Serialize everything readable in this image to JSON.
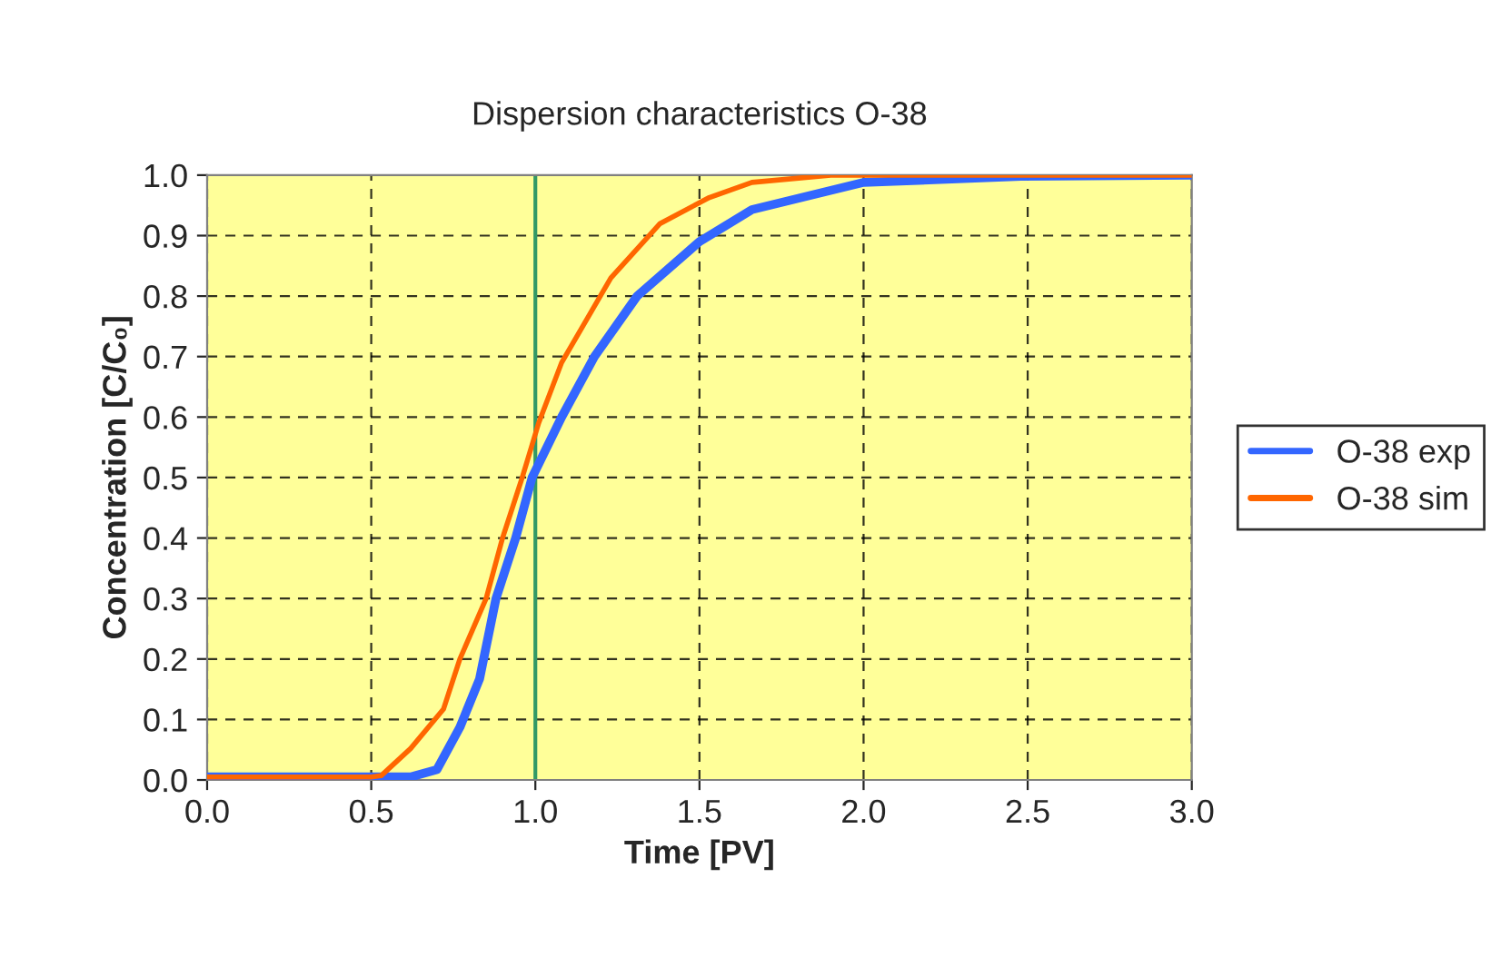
{
  "chart_data": {
    "type": "line",
    "title": "Dispersion characteristics O-38",
    "xlabel": "Time [PV]",
    "ylabel": "Concentration [C/C₀]",
    "xlim": [
      0,
      3
    ],
    "xticks": [
      {
        "value": 0,
        "label": "0.0"
      },
      {
        "value": 0.5,
        "label": "0.5"
      },
      {
        "value": 1,
        "label": "1.0"
      },
      {
        "value": 1.5,
        "label": "1.5"
      },
      {
        "value": 2,
        "label": "2.0"
      },
      {
        "value": 2.5,
        "label": "2.5"
      },
      {
        "value": 3,
        "label": "3.0"
      }
    ],
    "ylim": [
      0,
      1
    ],
    "yticks": [
      {
        "value": 0,
        "label": "0.0"
      },
      {
        "value": 0.1,
        "label": "0.1"
      },
      {
        "value": 0.2,
        "label": "0.2"
      },
      {
        "value": 0.3,
        "label": "0.3"
      },
      {
        "value": 0.4,
        "label": "0.4"
      },
      {
        "value": 0.5,
        "label": "0.5"
      },
      {
        "value": 0.6,
        "label": "0.6"
      },
      {
        "value": 0.7,
        "label": "0.7"
      },
      {
        "value": 0.8,
        "label": "0.8"
      },
      {
        "value": 0.9,
        "label": "0.9"
      },
      {
        "value": 1,
        "label": "1.0"
      }
    ],
    "grid": true,
    "legend": "right",
    "marker": "none",
    "line_style": "solid",
    "ref_lines": [
      {
        "axis": "x",
        "value": 1.0,
        "color": "#339966"
      }
    ],
    "series": [
      {
        "name": "O-38 exp",
        "color": "#3366ff",
        "x": [
          0,
          0.55,
          0.62,
          0.7,
          0.77,
          0.83,
          0.88,
          0.94,
          0.99,
          1.08,
          1.18,
          1.31,
          1.5,
          1.66,
          2.0,
          2.48,
          3.0
        ],
        "values": [
          0.005,
          0.005,
          0.005,
          0.017,
          0.087,
          0.167,
          0.3,
          0.4,
          0.5,
          0.6,
          0.7,
          0.8,
          0.89,
          0.943,
          0.988,
          0.998,
          1.0
        ]
      },
      {
        "name": "O-38 sim",
        "color": "#ff6600",
        "x": [
          0,
          0.5,
          0.53,
          0.62,
          0.72,
          0.77,
          0.85,
          0.9,
          0.96,
          1.01,
          1.08,
          1.23,
          1.38,
          1.53,
          1.66,
          1.9,
          3.0
        ],
        "values": [
          0.005,
          0.005,
          0.007,
          0.052,
          0.117,
          0.2,
          0.3,
          0.4,
          0.5,
          0.59,
          0.69,
          0.83,
          0.92,
          0.963,
          0.988,
          1.0,
          1.0
        ]
      }
    ]
  }
}
